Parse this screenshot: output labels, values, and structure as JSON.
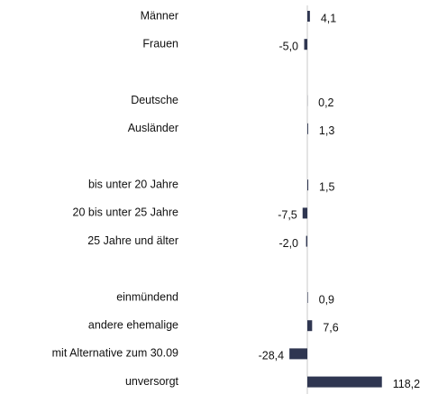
{
  "chart_data": {
    "type": "barh",
    "categories": [
      "Männer",
      "Frauen",
      null,
      "Deutsche",
      "Ausländer",
      null,
      "bis unter 20 Jahre",
      "20 bis unter 25 Jahre",
      "25 Jahre und älter",
      null,
      "einmündend",
      "andere ehemalige",
      "mit Alternative zum 30.09",
      "unversorgt"
    ],
    "values": [
      4.1,
      -5.0,
      null,
      0.2,
      1.3,
      null,
      1.5,
      -7.5,
      -2.0,
      null,
      0.9,
      7.6,
      -28.4,
      118.2
    ],
    "value_labels": [
      "4,1",
      "-5,0",
      null,
      "0,2",
      "1,3",
      null,
      "1,5",
      "-7,5",
      "-2,0",
      null,
      "0,9",
      "7,6",
      "-28,4",
      "118,2"
    ],
    "color": "#2f3651",
    "xlim": [
      -50,
      130
    ]
  }
}
